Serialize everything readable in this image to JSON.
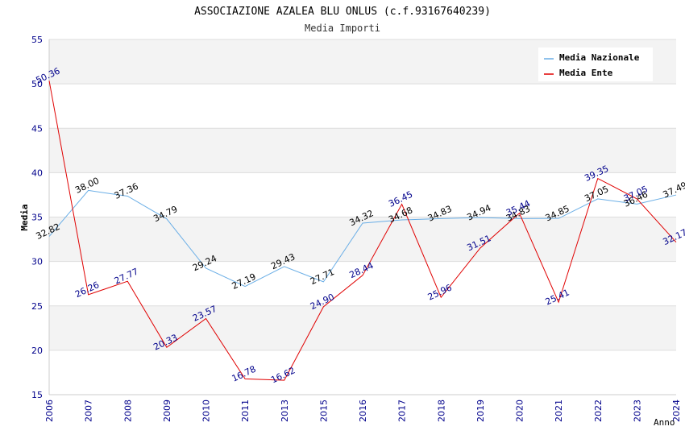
{
  "chart_data": {
    "type": "line",
    "title": "ASSOCIAZIONE AZALEA BLU ONLUS (c.f.93167640239)",
    "subtitle": "Media Importi",
    "ylabel": "Media",
    "xlabel": "Anno",
    "ylim": [
      15,
      55
    ],
    "yticks": [
      15,
      20,
      25,
      30,
      35,
      40,
      45,
      50,
      55
    ],
    "categories": [
      "2006",
      "2007",
      "2008",
      "2009",
      "2010",
      "2011",
      "2013",
      "2015",
      "2016",
      "2017",
      "2018",
      "2019",
      "2020",
      "2021",
      "2022",
      "2023",
      "2024"
    ],
    "grid": true,
    "legend_position": "top-right",
    "series": [
      {
        "name": "Media Nazionale",
        "color": "#6aaee6",
        "label_color": "#000000",
        "values": [
          32.82,
          38.0,
          37.36,
          34.79,
          29.24,
          27.19,
          29.43,
          27.71,
          34.32,
          34.68,
          34.83,
          34.94,
          34.83,
          34.85,
          37.05,
          36.46,
          37.49
        ],
        "labels": [
          "32.82",
          "38.00",
          "37.36",
          "34.79",
          "29.24",
          "27.19",
          "29.43",
          "27.71",
          "34.32",
          "34.68",
          "34.83",
          "34.94",
          "34.83",
          "34.85",
          "37.05",
          "36.46",
          "37.49"
        ]
      },
      {
        "name": "Media Ente",
        "color": "#e00000",
        "label_color": "#00008b",
        "values": [
          50.36,
          26.26,
          27.77,
          20.33,
          23.57,
          16.78,
          16.62,
          24.9,
          28.44,
          36.45,
          25.96,
          31.51,
          35.44,
          25.41,
          39.35,
          37.05,
          32.17
        ],
        "labels": [
          "50.36",
          "26.26",
          "27.77",
          "20.33",
          "23.57",
          "16.78",
          "16.62",
          "24.90",
          "28.44",
          "36.45",
          "25.96",
          "31.51",
          "35.44",
          "25.41",
          "39.35",
          "37.05",
          "32.17"
        ]
      }
    ]
  }
}
